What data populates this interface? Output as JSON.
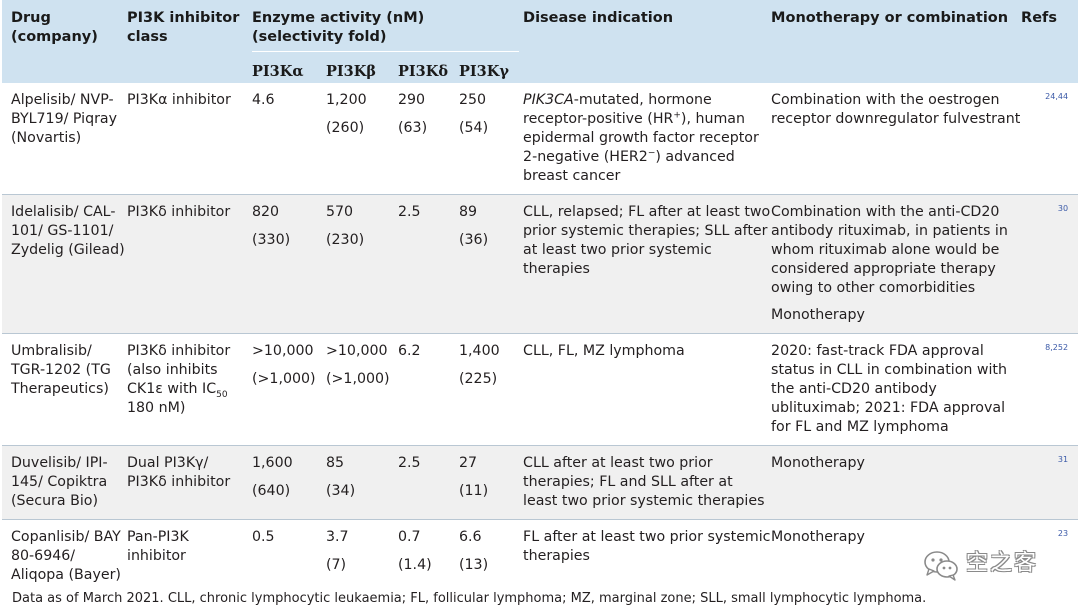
{
  "headers": {
    "drug": "Drug (company)",
    "class": "PI3K inhibitor class",
    "enzyme_group": "Enzyme activity (nM) (selectivity fold)",
    "isoforms": [
      "PI3Kα",
      "PI3Kβ",
      "PI3Kδ",
      "PI3Kγ"
    ],
    "indication": "Disease indication",
    "mono": "Monotherapy or combination",
    "refs": "Refs"
  },
  "rows": [
    {
      "drug": "Alpelisib/ NVP-BYL719/ Piqray (Novartis)",
      "class": "PI3Kα inhibitor",
      "alpha": {
        "value": "4.6",
        "sel": ""
      },
      "beta": {
        "value": "1,200",
        "sel": "(260)"
      },
      "delta": {
        "value": "290",
        "sel": "(63)"
      },
      "gamma": {
        "value": "250",
        "sel": "(54)"
      },
      "indication_gene": "PIK3CA",
      "indication": "-mutated, hormone receptor-positive (HR+), human epidermal growth factor receptor 2-negative (HER2−) advanced breast cancer",
      "mono": "Combination with the oestrogen receptor downregulator fulvestrant",
      "mono2": "",
      "refs": "24,44"
    },
    {
      "drug": "Idelalisib/ CAL-101/ GS-1101/ Zydelig (Gilead)",
      "class": "PI3Kδ inhibitor",
      "alpha": {
        "value": "820",
        "sel": "(330)"
      },
      "beta": {
        "value": "570",
        "sel": "(230)"
      },
      "delta": {
        "value": "2.5",
        "sel": ""
      },
      "gamma": {
        "value": "89",
        "sel": "(36)"
      },
      "indication": "CLL, relapsed; FL after at least two prior systemic therapies; SLL after at least two prior systemic therapies",
      "mono": "Combination with the anti-CD20 antibody rituximab, in patients in whom rituximab alone would be considered appropriate therapy owing to other comorbidities",
      "mono2": "Monotherapy",
      "refs": "30"
    },
    {
      "drug": "Umbralisib/ TGR-1202 (TG Therapeutics)",
      "class_main": "PI3Kδ inhibitor (also inhibits CK1ε with IC",
      "class_sub": "50",
      "class_tail": " 180 nM)",
      "alpha": {
        "value": ">10,000",
        "sel": "(>1,000)"
      },
      "beta": {
        "value": ">10,000",
        "sel": "(>1,000)"
      },
      "delta": {
        "value": "6.2",
        "sel": ""
      },
      "gamma": {
        "value": "1,400",
        "sel": "(225)"
      },
      "indication": "CLL, FL, MZ lymphoma",
      "mono": "2020: fast-track FDA approval status in CLL in combination with the anti-CD20 antibody ublituximab; 2021: FDA approval for FL and MZ lymphoma",
      "mono2": "",
      "refs": "8,252"
    },
    {
      "drug": "Duvelisib/ IPI-145/ Copiktra (Secura Bio)",
      "class": "Dual PI3Kγ/ PI3Kδ inhibitor",
      "alpha": {
        "value": "1,600",
        "sel": "(640)"
      },
      "beta": {
        "value": "85",
        "sel": "(34)"
      },
      "delta": {
        "value": "2.5",
        "sel": ""
      },
      "gamma": {
        "value": "27",
        "sel": "(11)"
      },
      "indication": "CLL after at least two prior therapies; FL and SLL after at least two prior systemic therapies",
      "mono": "Monotherapy",
      "mono2": "",
      "refs": "31"
    },
    {
      "drug": "Copanlisib/ BAY 80-6946/ Aliqopa (Bayer)",
      "class": "Pan-PI3K inhibitor",
      "alpha": {
        "value": "0.5",
        "sel": ""
      },
      "beta": {
        "value": "3.7",
        "sel": "(7)"
      },
      "delta": {
        "value": "0.7",
        "sel": "(1.4)"
      },
      "gamma": {
        "value": "6.6",
        "sel": "(13)"
      },
      "indication": "FL after at least two prior systemic therapies",
      "mono": "Monotherapy",
      "mono2": "",
      "refs": "23"
    }
  ],
  "footnote": "Data as of March 2021. CLL, chronic lymphocytic leukaemia; FL, follicular lymphoma; MZ, marginal zone; SLL, small lymphocytic lymphoma.",
  "watermark": {
    "text": "空之客",
    "icon": "wechat-logo-icon"
  }
}
